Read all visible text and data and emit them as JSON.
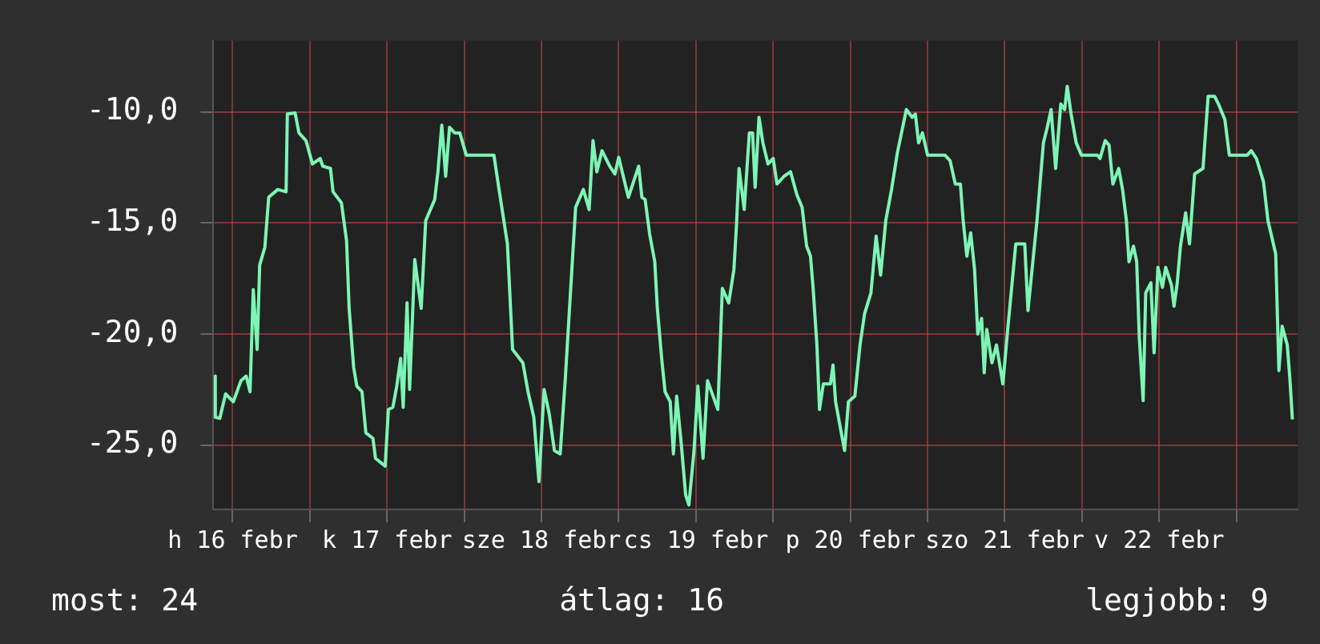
{
  "chart_data": {
    "type": "line",
    "grid": true,
    "legend": false,
    "marker": "none",
    "line_style": "solid",
    "xlim": [
      "--02-16T09:00",
      "--02-23T09:30"
    ],
    "ylim": [
      -27.9,
      -6.8
    ],
    "yticks": [
      {
        "value": -25,
        "label": "-25,0"
      },
      {
        "value": -20,
        "label": "-20,0"
      },
      {
        "value": -15,
        "label": "-15,0"
      },
      {
        "value": -10,
        "label": "-10,0"
      }
    ],
    "xticks": [
      {
        "value": "--02-16T12:00",
        "label": "h 16 febr"
      },
      {
        "value": "--02-17T00:00",
        "label": null
      },
      {
        "value": "--02-17T12:00",
        "label": "k 17 febr"
      },
      {
        "value": "--02-18T00:00",
        "label": null
      },
      {
        "value": "--02-18T12:00",
        "label": "sze 18 febr"
      },
      {
        "value": "--02-19T00:00",
        "label": null
      },
      {
        "value": "--02-19T12:00",
        "label": "cs 19 febr"
      },
      {
        "value": "--02-20T00:00",
        "label": null
      },
      {
        "value": "--02-20T12:00",
        "label": "p 20 febr"
      },
      {
        "value": "--02-21T00:00",
        "label": null
      },
      {
        "value": "--02-21T12:00",
        "label": "szo 21 febr"
      },
      {
        "value": "--02-22T00:00",
        "label": null
      },
      {
        "value": "--02-22T12:00",
        "label": "v 22 febr"
      },
      {
        "value": "--02-23T00:00",
        "label": null
      }
    ],
    "annotations": [
      "most: 24",
      "átlag: 16",
      "legjobb: 9"
    ],
    "series": [
      {
        "color": "#7df5b5",
        "x": [
          "--02-16T09:18",
          "--02-16T09:18",
          "--02-16T10:00",
          "--02-16T10:54",
          "--02-16T12:06",
          "--02-16T13:18",
          "--02-16T14:06",
          "--02-16T14:42",
          "--02-16T15:12",
          "--02-16T15:48",
          "--02-16T16:12",
          "--02-16T17:00",
          "--02-16T17:36",
          "--02-16T19:00",
          "--02-16T20:18",
          "--02-16T20:30",
          "--02-16T21:42",
          "--02-16T22:18",
          "--02-16T23:24",
          "--02-17T00:24",
          "--02-17T01:36",
          "--02-17T02:00",
          "--02-17T03:12",
          "--02-17T03:36",
          "--02-17T04:54",
          "--02-17T05:42",
          "--02-17T06:06",
          "--02-17T06:48",
          "--02-17T07:18",
          "--02-17T08:06",
          "--02-17T08:42",
          "--02-17T09:48",
          "--02-17T10:12",
          "--02-17T11:42",
          "--02-17T12:12",
          "--02-17T12:54",
          "--02-17T13:30",
          "--02-17T14:06",
          "--02-17T14:30",
          "--02-17T15:06",
          "--02-17T15:30",
          "--02-17T16:18",
          "--02-17T17:18",
          "--02-17T18:00",
          "--02-17T19:24",
          "--02-17T19:54",
          "--02-17T20:30",
          "--02-17T21:06",
          "--02-17T21:42",
          "--02-17T22:30",
          "--02-17T23:18",
          "--02-18T00:18",
          "--02-18T04:36",
          "--02-18T05:24",
          "--02-18T06:42",
          "--02-18T07:30",
          "--02-18T09:06",
          "--02-18T09:54",
          "--02-18T10:48",
          "--02-18T11:36",
          "--02-18T12:24",
          "--02-18T13:12",
          "--02-18T14:00",
          "--02-18T14:54",
          "--02-18T15:42",
          "--02-18T16:18",
          "--02-18T17:18",
          "--02-18T18:30",
          "--02-18T19:24",
          "--02-18T20:00",
          "--02-18T20:36",
          "--02-18T21:24",
          "--02-18T22:36",
          "--02-18T23:24",
          "--02-19T00:00",
          "--02-19T00:42",
          "--02-19T01:30",
          "--02-19T03:06",
          "--02-19T03:36",
          "--02-19T04:06",
          "--02-19T04:48",
          "--02-19T05:36",
          "--02-19T06:00",
          "--02-19T06:42",
          "--02-19T07:12",
          "--02-19T08:00",
          "--02-19T08:30",
          "--02-19T09:00",
          "--02-19T09:42",
          "--02-19T10:24",
          "--02-19T10:54",
          "--02-19T11:42",
          "--02-19T12:18",
          "--02-19T13:06",
          "--02-19T13:48",
          "--02-19T15:24",
          "--02-19T16:06",
          "--02-19T17:06",
          "--02-19T17:54",
          "--02-19T18:18",
          "--02-19T18:42",
          "--02-19T19:30",
          "--02-19T20:18",
          "--02-19T20:48",
          "--02-19T21:12",
          "--02-19T21:48",
          "--02-19T22:24",
          "--02-19T23:12",
          "--02-20T00:00",
          "--02-20T00:36",
          "--02-20T01:42",
          "--02-20T02:42",
          "--02-20T03:42",
          "--02-20T04:30",
          "--02-20T05:12",
          "--02-20T05:48",
          "--02-20T06:12",
          "--02-20T06:48",
          "--02-20T07:12",
          "--02-20T07:48",
          "--02-20T08:54",
          "--02-20T09:18",
          "--02-20T09:42",
          "--02-20T10:18",
          "--02-20T11:06",
          "--02-20T11:42",
          "--02-20T12:42",
          "--02-20T13:30",
          "--02-20T14:12",
          "--02-20T15:12",
          "--02-20T16:00",
          "--02-20T16:42",
          "--02-20T17:30",
          "--02-20T18:24",
          "--02-20T19:18",
          "--02-20T20:42",
          "--02-20T21:36",
          "--02-20T22:06",
          "--02-20T22:36",
          "--02-20T23:12",
          "--02-21T00:00",
          "--02-21T02:42",
          "--02-21T03:30",
          "--02-21T04:18",
          "--02-21T05:06",
          "--02-21T05:30",
          "--02-21T06:06",
          "--02-21T06:42",
          "--02-21T07:18",
          "--02-21T07:48",
          "--02-21T08:24",
          "--02-21T08:48",
          "--02-21T09:12",
          "--02-21T10:00",
          "--02-21T10:42",
          "--02-21T11:42",
          "--02-21T12:30",
          "--02-21T13:18",
          "--02-21T13:42",
          "--02-21T15:06",
          "--02-21T15:36",
          "--02-21T16:12",
          "--02-21T17:00",
          "--02-21T18:00",
          "--02-21T18:36",
          "--02-21T19:12",
          "--02-21T19:54",
          "--02-21T20:42",
          "--02-21T21:18",
          "--02-21T21:42",
          "--02-21T22:18",
          "--02-21T23:06",
          "--02-21T23:54",
          "--02-22T02:24",
          "--02-22T02:48",
          "--02-22T03:36",
          "--02-22T04:12",
          "--02-22T04:48",
          "--02-22T05:42",
          "--02-22T06:18",
          "--02-22T06:54",
          "--02-22T07:18",
          "--02-22T08:00",
          "--02-22T08:30",
          "--02-22T08:54",
          "--02-22T09:30",
          "--02-22T09:54",
          "--02-22T10:42",
          "--02-22T11:12",
          "--02-22T11:48",
          "--02-22T12:30",
          "--02-22T13:00",
          "--02-22T13:54",
          "--02-22T14:18",
          "--02-22T14:48",
          "--02-22T15:18",
          "--02-22T16:06",
          "--02-22T16:42",
          "--02-22T17:30",
          "--02-22T18:48",
          "--02-22T19:36",
          "--02-22T20:36",
          "--02-22T21:12",
          "--02-22T22:12",
          "--02-22T22:54",
          "--02-23T01:42",
          "--02-23T02:18",
          "--02-23T03:06",
          "--02-23T04:12",
          "--02-23T04:54",
          "--02-23T06:06",
          "--02-23T06:36",
          "--02-23T07:06",
          "--02-23T07:54",
          "--02-23T08:18",
          "--02-23T08:42"
        ],
        "values": [
          -21.9,
          -23.75,
          -23.8,
          -22.7,
          -23.05,
          -22.1,
          -21.9,
          -22.6,
          -18.0,
          -20.7,
          -16.9,
          -16.1,
          -13.85,
          -13.5,
          -13.6,
          -10.1,
          -10.05,
          -10.95,
          -11.3,
          -12.35,
          -12.1,
          -12.45,
          -12.55,
          -13.6,
          -14.1,
          -15.8,
          -18.85,
          -21.5,
          -22.35,
          -22.6,
          -24.45,
          -24.7,
          -25.6,
          -25.95,
          -23.4,
          -23.3,
          -22.35,
          -21.1,
          -23.3,
          -18.6,
          -22.5,
          -16.65,
          -18.85,
          -14.9,
          -13.95,
          -12.7,
          -10.6,
          -12.9,
          -10.7,
          -10.95,
          -10.95,
          -11.95,
          -11.95,
          -13.5,
          -15.95,
          -20.7,
          -21.3,
          -22.6,
          -23.75,
          -26.65,
          -22.5,
          -23.6,
          -25.25,
          -25.4,
          -22.0,
          -19.1,
          -14.3,
          -13.5,
          -14.4,
          -11.3,
          -12.7,
          -11.75,
          -12.45,
          -12.8,
          -12.05,
          -12.9,
          -13.85,
          -12.45,
          -13.85,
          -13.95,
          -15.5,
          -16.75,
          -18.85,
          -21.2,
          -22.6,
          -23.05,
          -25.4,
          -22.8,
          -24.9,
          -27.25,
          -27.7,
          -25.25,
          -22.35,
          -25.6,
          -22.1,
          -23.4,
          -17.95,
          -18.6,
          -17.1,
          -15.1,
          -12.55,
          -14.4,
          -10.95,
          -10.95,
          -13.4,
          -10.25,
          -11.4,
          -12.35,
          -12.1,
          -13.25,
          -12.9,
          -12.7,
          -13.75,
          -14.3,
          -16.05,
          -16.5,
          -17.9,
          -20.5,
          -23.4,
          -22.25,
          -22.25,
          -21.4,
          -23.05,
          -24.0,
          -25.25,
          -23.05,
          -22.8,
          -20.5,
          -19.1,
          -18.15,
          -15.6,
          -17.35,
          -14.9,
          -13.5,
          -11.85,
          -9.9,
          -10.25,
          -10.1,
          -11.4,
          -10.95,
          -11.95,
          -11.95,
          -12.2,
          -13.25,
          -13.25,
          -14.8,
          -16.5,
          -15.45,
          -17.1,
          -20.0,
          -19.3,
          -21.75,
          -19.8,
          -21.3,
          -20.5,
          -22.25,
          -19.65,
          -17.2,
          -15.95,
          -15.95,
          -18.95,
          -17.2,
          -14.9,
          -11.4,
          -10.7,
          -9.9,
          -12.55,
          -9.65,
          -9.9,
          -8.85,
          -10.1,
          -11.4,
          -11.95,
          -11.95,
          -12.1,
          -11.3,
          -11.5,
          -13.25,
          -12.55,
          -13.5,
          -14.9,
          -16.75,
          -16.05,
          -16.75,
          -20.15,
          -23.0,
          -18.15,
          -17.7,
          -20.85,
          -17.0,
          -17.9,
          -17.0,
          -17.8,
          -18.75,
          -17.7,
          -16.05,
          -14.55,
          -15.95,
          -12.8,
          -12.55,
          -9.3,
          -9.3,
          -9.65,
          -10.35,
          -11.95,
          -11.95,
          -11.75,
          -12.1,
          -13.15,
          -14.9,
          -16.4,
          -21.65,
          -19.65,
          -20.5,
          -22.0,
          -23.85
        ]
      }
    ]
  }
}
